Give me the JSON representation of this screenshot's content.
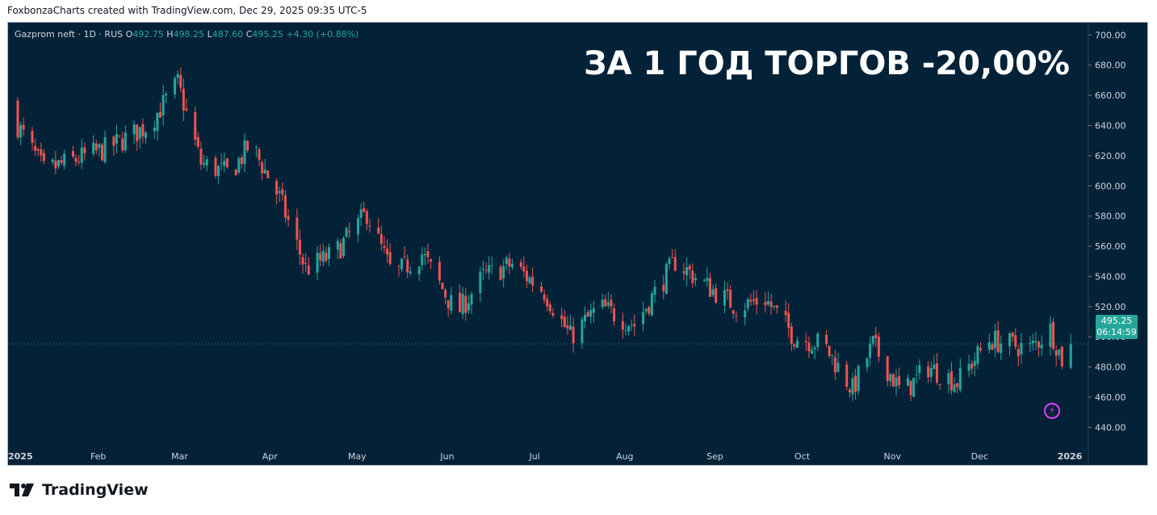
{
  "caption": "FoxbonzaCharts created with TradingView.com, Dec 29, 2025 09:35 UTC-5",
  "legend": {
    "symbol": "Gazprom neft · 1D · RUS",
    "open_label": "O",
    "open": "492.75",
    "high_label": "H",
    "high": "498.25",
    "low_label": "L",
    "low": "487.60",
    "close_label": "C",
    "close": "495.25",
    "change": "+4.30 (+0.88%)"
  },
  "headline": "ЗА 1 ГОД ТОРГОВ -20,00%",
  "price_badge": {
    "price": "495.25",
    "countdown": "06:14:59"
  },
  "brand": "TradingView",
  "colors": {
    "background": "#032238",
    "up": "#26a69a",
    "down": "#ef5350",
    "text": "#d1d4dc",
    "badge": "#26a69a",
    "alert": "#e040fb"
  },
  "icons": {
    "alert": "lightning-bolt-icon",
    "logo": "tradingview-logo-icon"
  },
  "chart_data": {
    "type": "candlestick",
    "title": "Gazprom neft · 1D · RUS",
    "y_ticks": [
      440,
      460,
      480,
      500,
      520,
      540,
      560,
      580,
      600,
      620,
      640,
      660,
      680,
      700
    ],
    "y_tick_labels": [
      "440.00",
      "460.00",
      "480.00",
      "500.00",
      "520.00",
      "540.00",
      "560.00",
      "580.00",
      "600.00",
      "620.00",
      "640.00",
      "660.00",
      "680.00",
      "700.00"
    ],
    "ylim": [
      430,
      705
    ],
    "x_ticks": [
      "2025",
      "Feb",
      "Mar",
      "Apr",
      "May",
      "Jun",
      "Jul",
      "Aug",
      "Sep",
      "Oct",
      "Nov",
      "Dec",
      "2026"
    ],
    "last_price": 495.25,
    "anchors": [
      {
        "x": "2025-01-01",
        "close": 640
      },
      {
        "x": "2025-01-10",
        "close": 610
      },
      {
        "x": "2025-02-01",
        "close": 625
      },
      {
        "x": "2025-02-15",
        "close": 640
      },
      {
        "x": "2025-02-25",
        "close": 668
      },
      {
        "x": "2025-03-05",
        "close": 615
      },
      {
        "x": "2025-03-15",
        "close": 608
      },
      {
        "x": "2025-03-22",
        "close": 628
      },
      {
        "x": "2025-04-01",
        "close": 592
      },
      {
        "x": "2025-04-10",
        "close": 545
      },
      {
        "x": "2025-04-20",
        "close": 555
      },
      {
        "x": "2025-05-01",
        "close": 582
      },
      {
        "x": "2025-05-10",
        "close": 540
      },
      {
        "x": "2025-05-20",
        "close": 555
      },
      {
        "x": "2025-06-01",
        "close": 515
      },
      {
        "x": "2025-06-10",
        "close": 540
      },
      {
        "x": "2025-06-20",
        "close": 548
      },
      {
        "x": "2025-07-01",
        "close": 530
      },
      {
        "x": "2025-07-10",
        "close": 500
      },
      {
        "x": "2025-07-20",
        "close": 520
      },
      {
        "x": "2025-08-01",
        "close": 508
      },
      {
        "x": "2025-08-15",
        "close": 550
      },
      {
        "x": "2025-08-25",
        "close": 535
      },
      {
        "x": "2025-09-05",
        "close": 520
      },
      {
        "x": "2025-09-15",
        "close": 525
      },
      {
        "x": "2025-09-25",
        "close": 500
      },
      {
        "x": "2025-10-05",
        "close": 495
      },
      {
        "x": "2025-10-15",
        "close": 465
      },
      {
        "x": "2025-10-22",
        "close": 495
      },
      {
        "x": "2025-11-01",
        "close": 462
      },
      {
        "x": "2025-11-10",
        "close": 480
      },
      {
        "x": "2025-11-20",
        "close": 470
      },
      {
        "x": "2025-12-01",
        "close": 498
      },
      {
        "x": "2025-12-15",
        "close": 492
      },
      {
        "x": "2025-12-22",
        "close": 505
      },
      {
        "x": "2025-12-26",
        "close": 485
      },
      {
        "x": "2025-12-29",
        "close": 495.25
      }
    ]
  }
}
